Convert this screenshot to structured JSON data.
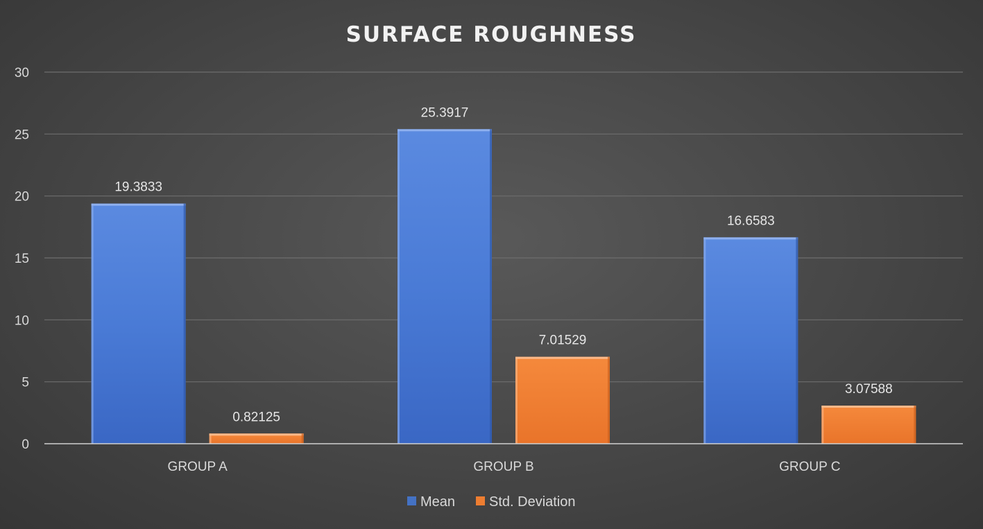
{
  "chart_data": {
    "type": "bar",
    "title": "SURFACE ROUGHNESS",
    "categories": [
      "GROUP A",
      "GROUP B",
      "GROUP C"
    ],
    "series": [
      {
        "name": "Mean",
        "values": [
          19.3833,
          25.3917,
          16.6583
        ],
        "labels": [
          "19.3833",
          "25.3917",
          "16.6583"
        ],
        "color": "#4472c4"
      },
      {
        "name": "Std. Deviation",
        "values": [
          0.82125,
          7.01529,
          3.07588
        ],
        "labels": [
          "0.82125",
          "7.01529",
          "3.07588"
        ],
        "color": "#ed7d31"
      }
    ],
    "ylim": [
      0,
      30
    ],
    "yticks": [
      "0",
      "5",
      "10",
      "15",
      "20",
      "25",
      "30"
    ],
    "grid": true,
    "legend": "bottom",
    "xlabel": "",
    "ylabel": ""
  }
}
